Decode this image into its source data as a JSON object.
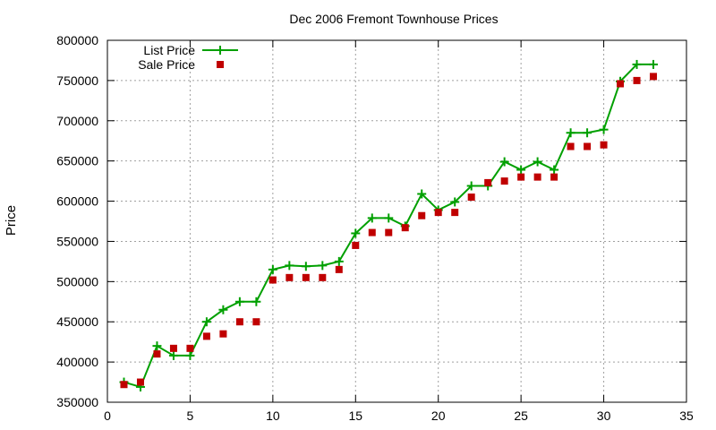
{
  "chart_data": {
    "type": "line",
    "title": "Dec 2006 Fremont Townhouse Prices",
    "xlabel": "",
    "ylabel": "Price",
    "xlim": [
      0,
      35
    ],
    "ylim": [
      350000,
      800000
    ],
    "x_ticks": [
      0,
      5,
      10,
      15,
      20,
      25,
      30,
      35
    ],
    "y_ticks": [
      350000,
      400000,
      450000,
      500000,
      550000,
      600000,
      650000,
      700000,
      750000,
      800000
    ],
    "grid": true,
    "legend_position": "top-left",
    "series": [
      {
        "name": "List Price",
        "style": "line-points",
        "color": "#00a000",
        "x": [
          1,
          2,
          3,
          4,
          5,
          6,
          7,
          8,
          9,
          10,
          11,
          12,
          13,
          14,
          15,
          16,
          17,
          18,
          19,
          20,
          21,
          22,
          23,
          24,
          25,
          26,
          27,
          28,
          29,
          30,
          31,
          32,
          33
        ],
        "y": [
          375000,
          369000,
          420000,
          408000,
          408000,
          450000,
          465000,
          475000,
          475000,
          515000,
          520000,
          519000,
          520000,
          525000,
          560000,
          579000,
          579000,
          569000,
          609000,
          589000,
          599000,
          619000,
          619000,
          649000,
          639000,
          649000,
          639000,
          685000,
          685000,
          689000,
          749000,
          770000,
          770000
        ]
      },
      {
        "name": "Sale Price",
        "style": "points",
        "color": "#c00000",
        "x": [
          1,
          2,
          3,
          4,
          5,
          6,
          7,
          8,
          9,
          10,
          11,
          12,
          13,
          14,
          15,
          16,
          17,
          18,
          19,
          20,
          21,
          22,
          23,
          24,
          25,
          26,
          27,
          28,
          29,
          30,
          31,
          32,
          33
        ],
        "y": [
          372000,
          375000,
          410000,
          417000,
          417000,
          432000,
          435000,
          450000,
          450000,
          502000,
          505000,
          505000,
          505000,
          515000,
          545000,
          561000,
          561000,
          567000,
          582000,
          586000,
          586000,
          605000,
          623000,
          625000,
          630000,
          630000,
          630000,
          668000,
          668000,
          670000,
          746000,
          750000,
          755000
        ]
      }
    ]
  }
}
